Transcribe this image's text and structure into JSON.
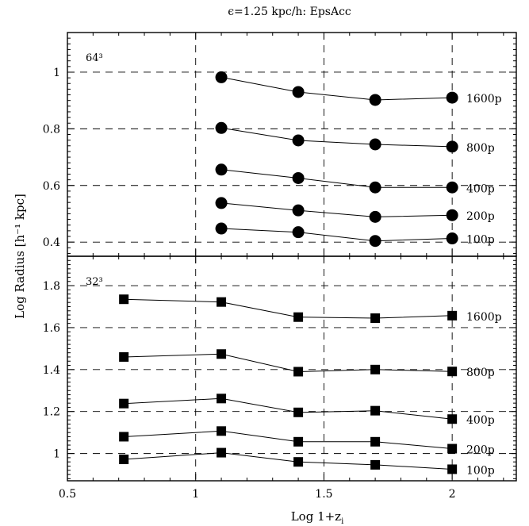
{
  "chart_data": {
    "type": "line",
    "title": "ϵ=1.25 kpc/h: EpsAcc",
    "xlabel": "Log 1+z",
    "xlabel_sub": "i",
    "ylabel": "Log Radius [h⁻¹ kpc]",
    "xlim": [
      0.5,
      2.25
    ],
    "x_ticks": [
      0.5,
      1,
      1.5,
      2
    ],
    "x_tick_labels": [
      "0.5",
      "1",
      "1.5",
      "2"
    ],
    "grid": "dashed",
    "panels": [
      {
        "id": "top",
        "label": "64³",
        "marker": "circle",
        "ylim": [
          0.35,
          1.14
        ],
        "y_ticks": [
          0.4,
          0.6,
          0.8,
          1.0
        ],
        "y_tick_labels": [
          "0.4",
          "0.6",
          "0.8",
          "1"
        ],
        "x_grid": [
          1,
          1.5,
          2
        ],
        "y_grid": [
          0.4,
          0.6,
          0.8,
          1.0
        ],
        "series": [
          {
            "name": "1600p",
            "x": [
              1.1,
              1.4,
              1.7,
              2.0
            ],
            "y": [
              0.982,
              0.93,
              0.902,
              0.91
            ]
          },
          {
            "name": "800p",
            "x": [
              1.1,
              1.4,
              1.7,
              2.0
            ],
            "y": [
              0.803,
              0.759,
              0.745,
              0.737
            ]
          },
          {
            "name": "400p",
            "x": [
              1.1,
              1.4,
              1.7,
              2.0
            ],
            "y": [
              0.656,
              0.626,
              0.593,
              0.593
            ]
          },
          {
            "name": "200p",
            "x": [
              1.1,
              1.4,
              1.7,
              2.0
            ],
            "y": [
              0.538,
              0.512,
              0.489,
              0.495
            ]
          },
          {
            "name": "100p",
            "x": [
              1.1,
              1.4,
              1.7,
              2.0
            ],
            "y": [
              0.448,
              0.435,
              0.404,
              0.413
            ]
          }
        ]
      },
      {
        "id": "bottom",
        "label": "32³",
        "marker": "square",
        "ylim": [
          0.87,
          1.94
        ],
        "y_ticks": [
          1.0,
          1.2,
          1.4,
          1.6,
          1.8
        ],
        "y_tick_labels": [
          "1",
          "1.2",
          "1.4",
          "1.6",
          "1.8"
        ],
        "x_grid": [
          1,
          1.5,
          2
        ],
        "y_grid": [
          1.0,
          1.2,
          1.4,
          1.6,
          1.8
        ],
        "series": [
          {
            "name": "1600p",
            "x": [
              0.72,
              1.1,
              1.4,
              1.7,
              2.0
            ],
            "y": [
              1.735,
              1.722,
              1.65,
              1.645,
              1.657
            ]
          },
          {
            "name": "800p",
            "x": [
              0.72,
              1.1,
              1.4,
              1.7,
              2.0
            ],
            "y": [
              1.46,
              1.474,
              1.39,
              1.4,
              1.391
            ]
          },
          {
            "name": "400p",
            "x": [
              0.72,
              1.1,
              1.4,
              1.7,
              2.0
            ],
            "y": [
              1.238,
              1.262,
              1.196,
              1.204,
              1.164
            ]
          },
          {
            "name": "200p",
            "x": [
              0.72,
              1.1,
              1.4,
              1.7,
              2.0
            ],
            "y": [
              1.08,
              1.107,
              1.056,
              1.056,
              1.023
            ]
          },
          {
            "name": "100p",
            "x": [
              0.72,
              1.1,
              1.4,
              1.7,
              2.0
            ],
            "y": [
              0.972,
              1.004,
              0.96,
              0.946,
              0.925
            ]
          }
        ]
      }
    ]
  }
}
